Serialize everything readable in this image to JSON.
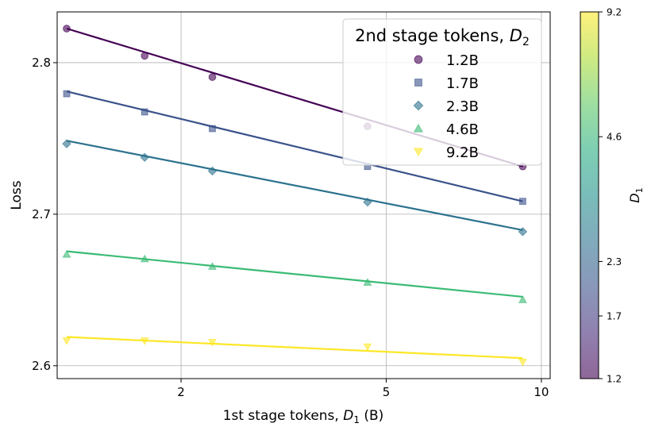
{
  "chart_data": {
    "type": "scatter",
    "x_label_prefix": "1st stage tokens, ",
    "x_label_var": "D",
    "x_label_sub": "1",
    "x_label_suffix": " (B)",
    "y_label": "Loss",
    "x_scale": "log",
    "xlim": [
      1.15,
      10.4
    ],
    "ylim": [
      2.5915,
      2.8335
    ],
    "x_ticks": [
      {
        "value": 2,
        "label": "2"
      },
      {
        "value": 5,
        "label": "5"
      },
      {
        "value": 10,
        "label": "10"
      }
    ],
    "y_ticks": [
      {
        "value": 2.6,
        "label": "2.6"
      },
      {
        "value": 2.7,
        "label": "2.7"
      },
      {
        "value": 2.8,
        "label": "2.8"
      }
    ],
    "grid": true,
    "legend": {
      "title_prefix": "2nd stage tokens, ",
      "title_var": "D",
      "title_sub": "2",
      "placement": "top-right"
    },
    "x": [
      1.2,
      1.7,
      2.3,
      4.6,
      9.2
    ],
    "series": [
      {
        "name": "1.2B",
        "marker": "circle",
        "color": "#440154",
        "y": [
          2.8225,
          2.8045,
          2.7905,
          2.758,
          2.7315
        ],
        "fit": [
          2.8225,
          2.7315
        ]
      },
      {
        "name": "1.7B",
        "marker": "square",
        "color": "#3b528b",
        "y": [
          2.7795,
          2.7675,
          2.7565,
          2.7315,
          2.7085
        ],
        "fit": [
          2.781,
          2.7085
        ]
      },
      {
        "name": "2.3B",
        "marker": "diamond",
        "color": "#2c728e",
        "y": [
          2.7465,
          2.7375,
          2.7285,
          2.708,
          2.6885
        ],
        "fit": [
          2.7485,
          2.6895
        ]
      },
      {
        "name": "4.6B",
        "marker": "triangle-up",
        "color": "#3bbb75",
        "y": [
          2.6735,
          2.6705,
          2.6655,
          2.655,
          2.6435
        ],
        "fit": [
          2.6755,
          2.6455
        ]
      },
      {
        "name": "9.2B",
        "marker": "triangle-down",
        "color": "#fde725",
        "y": [
          2.6165,
          2.6165,
          2.6155,
          2.6125,
          2.6025
        ],
        "fit": [
          2.619,
          2.605
        ]
      }
    ],
    "colorbar": {
      "label_var": "D",
      "label_sub": "1",
      "scale": "log",
      "range": [
        1.2,
        9.2
      ],
      "colormap": "viridis",
      "alpha": 0.6,
      "ticks": [
        "1.2",
        "1.7",
        "2.3",
        "4.6",
        "9.2"
      ],
      "tick_values": [
        1.2,
        1.7,
        2.3,
        4.6,
        9.2
      ]
    }
  }
}
